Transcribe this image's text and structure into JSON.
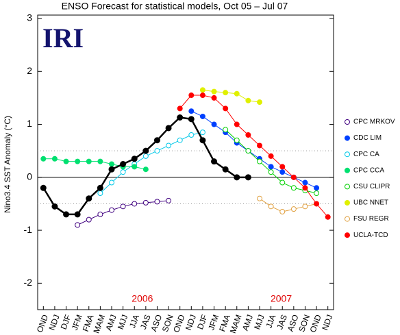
{
  "chart_data": {
    "type": "line",
    "title": "ENSO Forecast for statistical models, Oct 05 – Jul 07",
    "logo": "IRI",
    "y_label": "Nino3.4 SST Anomaly (°C)",
    "categories": [
      "OND",
      "NDJ",
      "DJF",
      "JFM",
      "FMA",
      "MAM",
      "AMJ",
      "MJJ",
      "JJA",
      "JAS",
      "ASO",
      "SON",
      "OND",
      "NDJ",
      "DJF",
      "JFM",
      "FMA",
      "MAM",
      "AMJ",
      "MJJ",
      "JJA",
      "JAS",
      "ASO",
      "SON",
      "OND",
      "NDJ"
    ],
    "ylim": [
      -2.5,
      3
    ],
    "yticks": [
      -2,
      -1,
      0,
      1,
      2,
      3
    ],
    "hlines": [
      {
        "value": 0,
        "style": "solid"
      },
      {
        "value": 0.5,
        "style": "dotted"
      },
      {
        "value": -0.5,
        "style": "dotted"
      }
    ],
    "annotations": [
      {
        "text": "2006",
        "color": "#e00000"
      },
      {
        "text": "2007",
        "color": "#e00000"
      }
    ],
    "observed": {
      "color": "#000000",
      "values": [
        -0.2,
        -0.55,
        -0.7,
        -0.7,
        -0.4,
        -0.2,
        0.15,
        0.25,
        0.35,
        0.5,
        0.7,
        0.93,
        1.13,
        1.1,
        0.7,
        0.3,
        0.15,
        0,
        0,
        null,
        null,
        null,
        null,
        null,
        null,
        null
      ]
    },
    "series": [
      {
        "name": "CPC MRKOV",
        "color": "#400080",
        "filled": false,
        "values": [
          null,
          null,
          null,
          -0.9,
          -0.8,
          -0.7,
          -0.62,
          -0.55,
          -0.5,
          -0.48,
          -0.46,
          -0.44,
          null,
          null,
          null,
          null,
          null,
          null,
          null,
          null,
          null,
          null,
          null,
          null,
          null,
          null
        ]
      },
      {
        "name": "CDC LIM",
        "color": "#0040ff",
        "filled": true,
        "values": [
          null,
          null,
          null,
          null,
          null,
          null,
          null,
          null,
          null,
          null,
          null,
          null,
          null,
          1.25,
          1.15,
          1.0,
          0.85,
          0.65,
          0.5,
          0.35,
          0.2,
          0.1,
          0,
          -0.1,
          -0.2,
          null
        ]
      },
      {
        "name": "CPC CA",
        "color": "#00c8e8",
        "filled": false,
        "values": [
          null,
          null,
          null,
          null,
          null,
          -0.3,
          -0.1,
          0.1,
          0.25,
          0.4,
          0.5,
          0.6,
          0.7,
          0.8,
          0.85,
          null,
          null,
          null,
          null,
          null,
          null,
          null,
          null,
          null,
          null,
          null
        ]
      },
      {
        "name": "CPC CCA",
        "color": "#00e070",
        "filled": true,
        "values": [
          0.35,
          0.35,
          0.3,
          0.3,
          0.3,
          0.3,
          0.25,
          0.2,
          0.2,
          0.15,
          null,
          null,
          null,
          null,
          null,
          null,
          null,
          null,
          null,
          null,
          null,
          null,
          null,
          null,
          null,
          null
        ]
      },
      {
        "name": "CSU CLIPR",
        "color": "#00d000",
        "filled": false,
        "values": [
          null,
          null,
          null,
          null,
          null,
          null,
          null,
          null,
          null,
          null,
          null,
          null,
          null,
          null,
          null,
          null,
          0.9,
          0.7,
          0.5,
          0.3,
          0.1,
          -0.1,
          -0.2,
          -0.25,
          -0.3,
          null
        ]
      },
      {
        "name": "UBC NNET",
        "color": "#e0f000",
        "filled": true,
        "values": [
          null,
          null,
          null,
          null,
          null,
          null,
          null,
          null,
          null,
          null,
          null,
          null,
          null,
          null,
          1.65,
          1.62,
          1.6,
          1.58,
          1.45,
          1.42,
          null,
          null,
          null,
          null,
          null,
          null
        ]
      },
      {
        "name": "FSU REGR",
        "color": "#e0a040",
        "filled": false,
        "values": [
          null,
          null,
          null,
          null,
          null,
          null,
          null,
          null,
          null,
          null,
          null,
          null,
          null,
          null,
          null,
          null,
          null,
          null,
          null,
          -0.4,
          -0.55,
          -0.65,
          -0.6,
          -0.55,
          -0.5,
          null
        ]
      },
      {
        "name": "UCLA-TCD",
        "color": "#ff0000",
        "filled": true,
        "values": [
          null,
          null,
          null,
          null,
          null,
          null,
          null,
          null,
          null,
          null,
          null,
          null,
          1.3,
          1.55,
          1.55,
          1.5,
          1.3,
          1.0,
          0.8,
          0.6,
          0.4,
          0.2,
          0.0,
          -0.2,
          -0.5,
          -0.75
        ]
      }
    ]
  }
}
